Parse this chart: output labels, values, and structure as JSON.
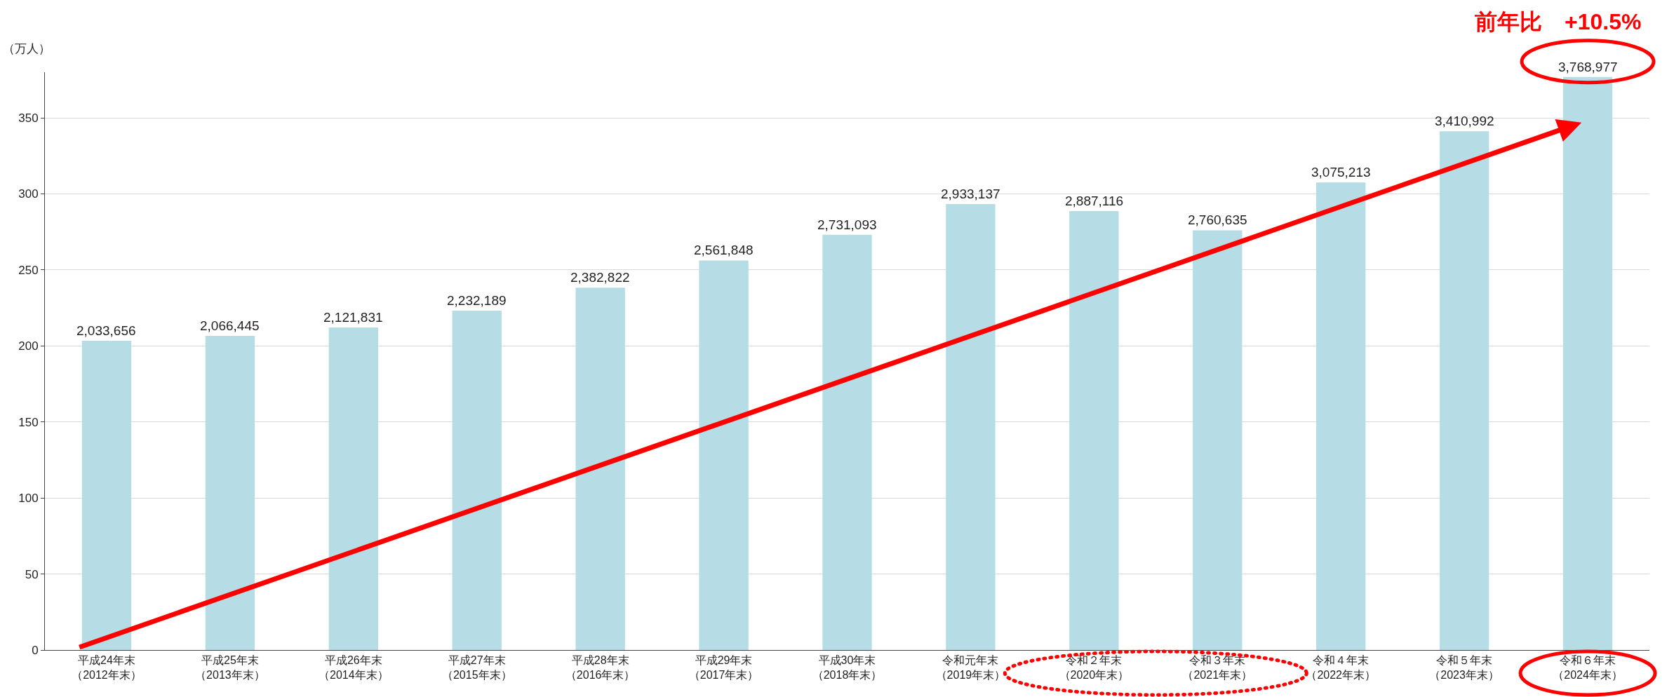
{
  "chart_data": {
    "type": "bar",
    "ylabel": "（万人）",
    "categories": [
      "平成24年末（2012年末）",
      "平成25年末（2013年末）",
      "平成26年末（2014年末）",
      "平成27年末（2015年末）",
      "平成28年末（2016年末）",
      "平成29年末（2017年末）",
      "平成30年末（2018年末）",
      "令和元年末（2019年末）",
      "令和２年末（2020年末）",
      "令和３年末（2021年末）",
      "令和４年末（2022年末）",
      "令和５年末（2023年末）",
      "令和６年末（2024年末）"
    ],
    "values": [
      203.3656,
      206.6445,
      212.1831,
      223.2189,
      238.2822,
      256.1848,
      273.1093,
      293.3137,
      288.7116,
      276.0635,
      307.5213,
      341.0992,
      376.8977
    ],
    "color": "#b6dde6",
    "ylim": [
      0,
      380
    ],
    "yticks": [
      0,
      50,
      100,
      150,
      200,
      250,
      300,
      350
    ],
    "grid": "y",
    "annotations": [
      {
        "text": "2,033,656",
        "x": "平成24年末（2012年末）",
        "y": 203.3656
      },
      {
        "text": "2,066,445",
        "x": "平成25年末（2013年末）",
        "y": 206.6445
      },
      {
        "text": "2,121,831",
        "x": "平成26年末（2014年末）",
        "y": 212.1831
      },
      {
        "text": "2,232,189",
        "x": "平成27年末（2015年末）",
        "y": 223.2189
      },
      {
        "text": "2,382,822",
        "x": "平成28年末（2016年末）",
        "y": 238.2822
      },
      {
        "text": "2,561,848",
        "x": "平成29年末（2017年末）",
        "y": 256.1848
      },
      {
        "text": "2,731,093",
        "x": "平成30年末（2018年末）",
        "y": 273.1093
      },
      {
        "text": "2,933,137",
        "x": "令和元年末（2019年末）",
        "y": 293.3137
      },
      {
        "text": "2,887,116",
        "x": "令和２年末（2020年末）",
        "y": 288.7116
      },
      {
        "text": "2,760,635",
        "x": "令和３年末（2021年末）",
        "y": 276.0635
      },
      {
        "text": "3,075,213",
        "x": "令和４年末（2022年末）",
        "y": 307.5213
      },
      {
        "text": "3,410,992",
        "x": "令和５年末（2023年末）",
        "y": 341.0992
      },
      {
        "text": "3,768,977",
        "x": "令和６年末（2024年末）",
        "y": 376.8977
      },
      "前年比　+10.5%"
    ]
  }
}
